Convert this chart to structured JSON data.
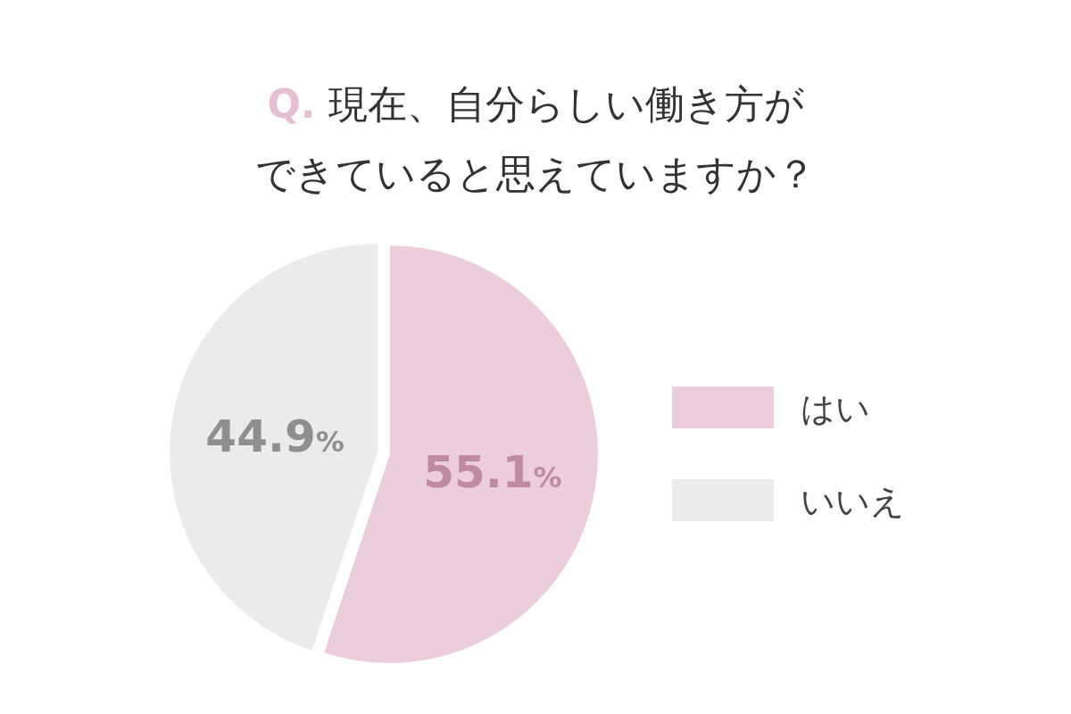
{
  "chart_data": {
    "type": "pie",
    "title": "Q. 現在、自分らしい働き方が",
    "subtitle": "できていると思えていますか？",
    "categories": [
      "はい",
      "いいえ"
    ],
    "values": [
      55.1,
      44.9
    ],
    "colors": [
      "#ebcddb",
      "#ebebeb"
    ],
    "value_labels": [
      "55.1%",
      "44.9%"
    ],
    "legend": "right"
  }
}
